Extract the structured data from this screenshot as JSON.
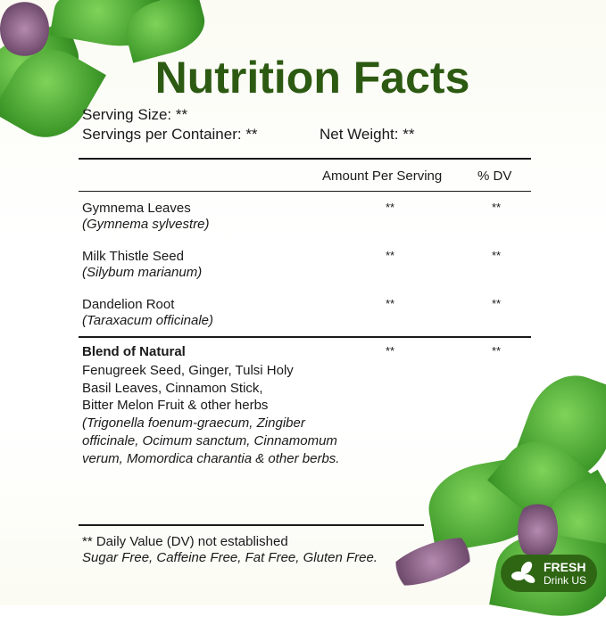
{
  "title": "Nutrition Facts",
  "serving_size": "Serving Size: **",
  "servings_per_container": "Servings per Container: **",
  "net_weight": "Net Weight: **",
  "columns": {
    "amount": "Amount Per Serving",
    "dv": "% DV"
  },
  "rows": [
    {
      "name": "Gymnema Leaves",
      "latin": "(Gymnema sylvestre)",
      "amount": "**",
      "dv": "**"
    },
    {
      "name": "Milk Thistle Seed",
      "latin": "(Silybum marianum)",
      "amount": "**",
      "dv": "**"
    },
    {
      "name": "Dandelion Root",
      "latin": "(Taraxacum officinale)",
      "amount": "**",
      "dv": "**"
    }
  ],
  "blend": {
    "title": "Blend of Natural",
    "lines": [
      "Fenugreek Seed, Ginger, Tulsi Holy",
      "Basil Leaves, Cinnamon Stick,",
      "Bitter Melon Fruit & other herbs"
    ],
    "latin_lines": [
      "(Trigonella foenum-graecum, Zingiber",
      "officinale, Ocimum sanctum, Cinnamomum",
      "verum, Momordica charantia & other berbs."
    ],
    "amount": "**",
    "dv": "**"
  },
  "footnote": "** Daily Value (DV) not established",
  "claims": "Sugar Free, Caffeine Free, Fat Free, Gluten Free.",
  "badge": {
    "line1": "FRESH",
    "line2": "Drink US",
    "color": "#2f6614"
  },
  "colors": {
    "title": "#2d5a12",
    "leaf": "#3f9a2a"
  }
}
